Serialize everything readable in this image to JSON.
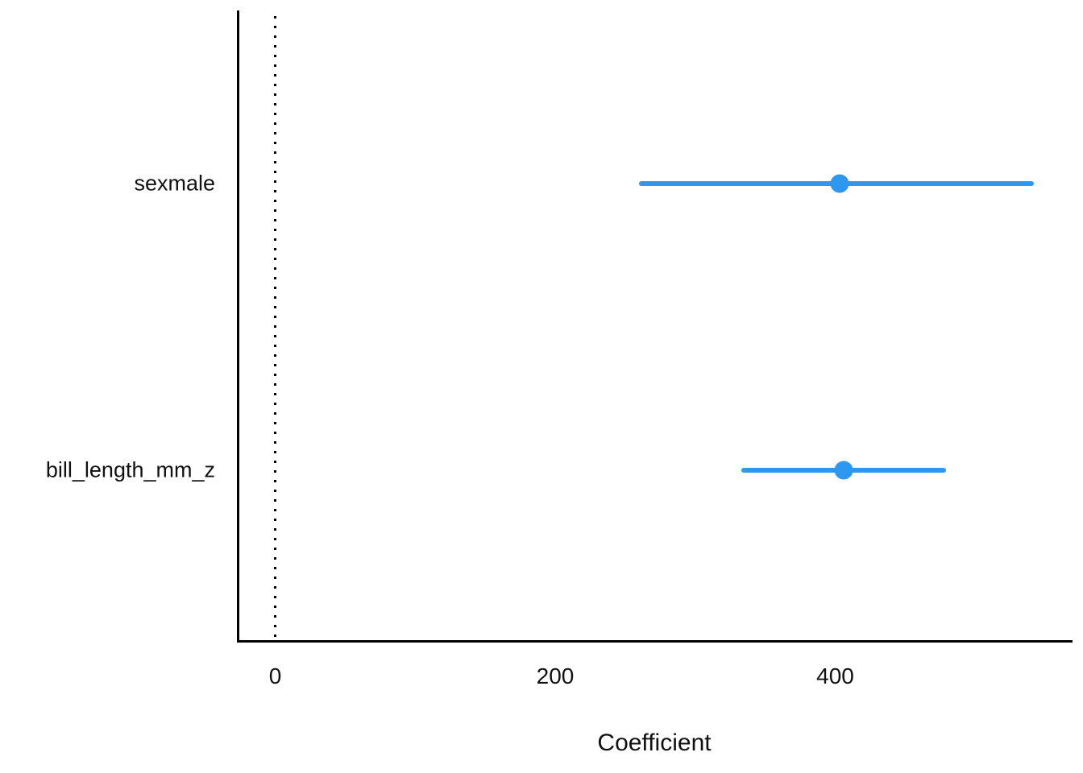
{
  "figure": {
    "background_color": "#ffffff",
    "axis_color": "#000000",
    "point_color": "#2E97F0",
    "text_color": "#111111"
  },
  "chart_data": {
    "type": "scatter",
    "subtype": "coefficient-dot-whisker",
    "title": "",
    "xlabel": "Coefficient",
    "ylabel": "",
    "x_ticks": [
      0,
      200,
      400
    ],
    "xlim": [
      -27,
      570
    ],
    "grid": false,
    "legend": "none",
    "reference_line_x": 0,
    "reference_line_style": "dotted",
    "categories": [
      "sexmale",
      "bill_length_mm_z"
    ],
    "points": [
      {
        "term": "sexmale",
        "estimate": 403,
        "conf_low": 260,
        "conf_high": 542
      },
      {
        "term": "bill_length_mm_z",
        "estimate": 406,
        "conf_low": 333,
        "conf_high": 479
      }
    ]
  }
}
